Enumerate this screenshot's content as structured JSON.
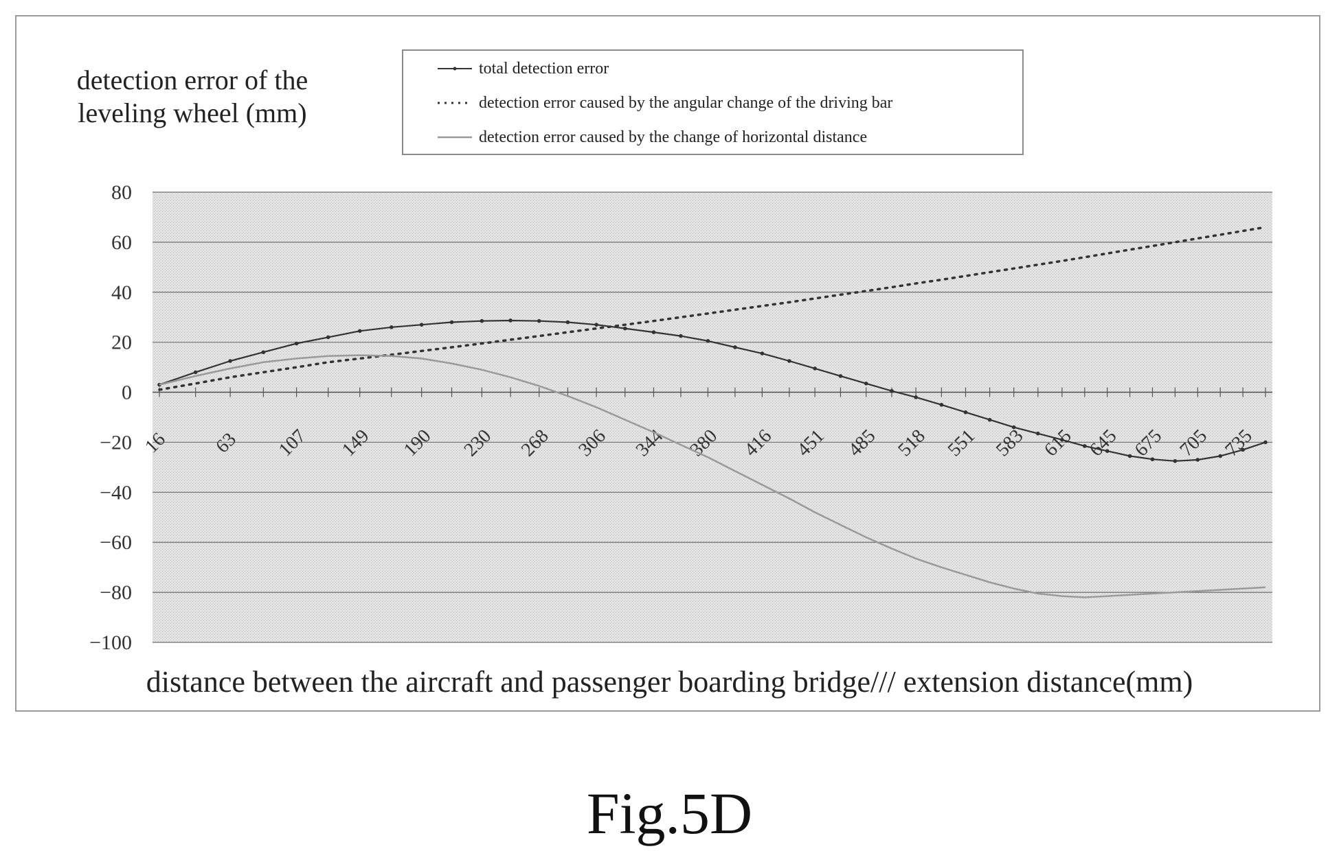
{
  "figure_caption": "Fig.5D",
  "chart_data": {
    "type": "line",
    "title": "",
    "ylabel": "detection error of the leveling wheel (mm)",
    "xlabel": "distance between the aircraft and passenger boarding bridge/// extension distance(mm)",
    "ylim": [
      -100,
      80
    ],
    "yticks": [
      80,
      60,
      40,
      20,
      0,
      -20,
      -40,
      -60,
      -80,
      -100
    ],
    "grid": true,
    "legend_position": "top-center",
    "categories": [
      "16",
      "63",
      "107",
      "149",
      "190",
      "230",
      "268",
      "306",
      "344",
      "380",
      "416",
      "451",
      "485",
      "518",
      "551",
      "583",
      "615",
      "645",
      "675",
      "705",
      "735"
    ],
    "x": [
      16,
      40,
      63,
      85,
      107,
      128,
      149,
      170,
      190,
      210,
      230,
      249,
      268,
      287,
      306,
      325,
      344,
      362,
      380,
      398,
      416,
      434,
      451,
      468,
      485,
      502,
      518,
      535,
      551,
      567,
      583,
      599,
      615,
      630,
      645,
      660,
      675,
      690,
      705,
      720,
      735,
      750
    ],
    "series": [
      {
        "name": "total detection error",
        "style": "solid-marker",
        "color": "#333333",
        "values": [
          3,
          8,
          12.5,
          16,
          19.5,
          22,
          24.5,
          26,
          27,
          28,
          28.5,
          28.7,
          28.5,
          28,
          27,
          25.5,
          24,
          22.5,
          20.5,
          18,
          15.5,
          12.5,
          9.5,
          6.5,
          3.5,
          0.5,
          -2,
          -5,
          -8,
          -11,
          -14,
          -16.5,
          -19,
          -21.5,
          -23.5,
          -25.5,
          -26.8,
          -27.5,
          -27,
          -25.5,
          -23,
          -20
        ]
      },
      {
        "name": "detection error caused by the angular change of the driving bar",
        "style": "dotted",
        "color": "#333333",
        "values": [
          1,
          3.5,
          6,
          8,
          10,
          12,
          13.5,
          15,
          16.5,
          18,
          19.5,
          21,
          22.5,
          24,
          25.5,
          27,
          28.5,
          30,
          31.5,
          33,
          34.5,
          36,
          37.5,
          39,
          40.5,
          42,
          43.5,
          45,
          46.5,
          48,
          49.5,
          51,
          52.5,
          54,
          55.5,
          57,
          58.5,
          60,
          61.5,
          63,
          64.5,
          66
        ]
      },
      {
        "name": "detection error caused by the change of horizontal distance",
        "style": "solid-light",
        "color": "#9a9a9a",
        "values": [
          3,
          6.5,
          9.5,
          12,
          13.5,
          14.5,
          14.8,
          14.5,
          13.5,
          11.5,
          9,
          6,
          2.5,
          -1.5,
          -6,
          -11,
          -16,
          -21,
          -26,
          -31.5,
          -37,
          -42.5,
          -48,
          -53,
          -58,
          -62.5,
          -66.5,
          -70,
          -73,
          -76,
          -78.5,
          -80.5,
          -81.5,
          -82,
          -81.5,
          -81,
          -80.5,
          -80,
          -79.5,
          -79,
          -78.5,
          -78
        ]
      }
    ]
  }
}
